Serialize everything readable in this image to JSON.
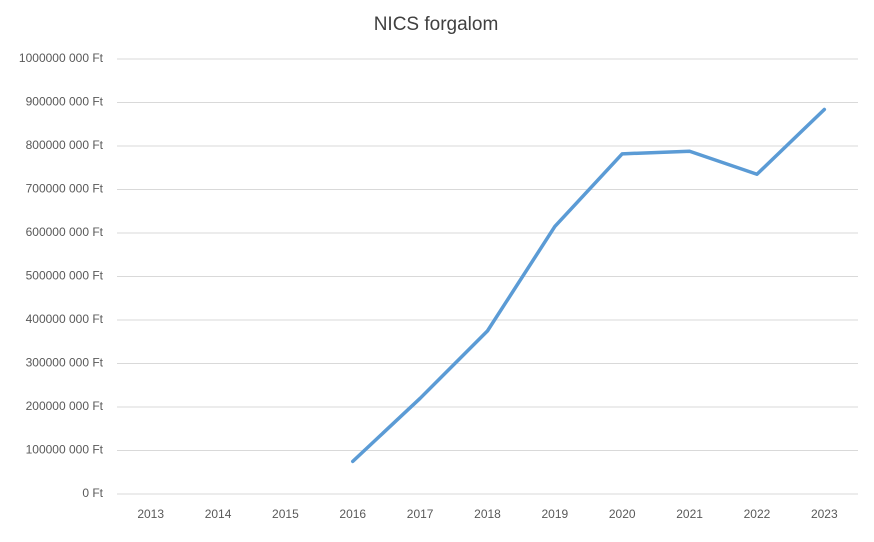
{
  "chart_data": {
    "type": "line",
    "title": "NICS forgalom",
    "categories": [
      "2013",
      "2014",
      "2015",
      "2016",
      "2017",
      "2018",
      "2019",
      "2020",
      "2021",
      "2022",
      "2023"
    ],
    "series": [
      {
        "color": "#5b9bd5",
        "values": [
          null,
          null,
          null,
          75000000,
          220000000,
          375000000,
          615000000,
          782000000,
          788000000,
          735000000,
          884000000
        ]
      }
    ],
    "ylim": [
      0,
      1000000000
    ],
    "yticks": [
      {
        "value": 0,
        "label": "0 Ft"
      },
      {
        "value": 100000000,
        "label": "100000 000 Ft"
      },
      {
        "value": 200000000,
        "label": "200000 000 Ft"
      },
      {
        "value": 300000000,
        "label": "300000 000 Ft"
      },
      {
        "value": 400000000,
        "label": "400000 000 Ft"
      },
      {
        "value": 500000000,
        "label": "500000 000 Ft"
      },
      {
        "value": 600000000,
        "label": "600000 000 Ft"
      },
      {
        "value": 700000000,
        "label": "700000 000 Ft"
      },
      {
        "value": 800000000,
        "label": "800000 000 Ft"
      },
      {
        "value": 900000000,
        "label": "900000 000 Ft"
      },
      {
        "value": 1000000000,
        "label": "1000000 000 Ft"
      }
    ],
    "grid": true
  }
}
